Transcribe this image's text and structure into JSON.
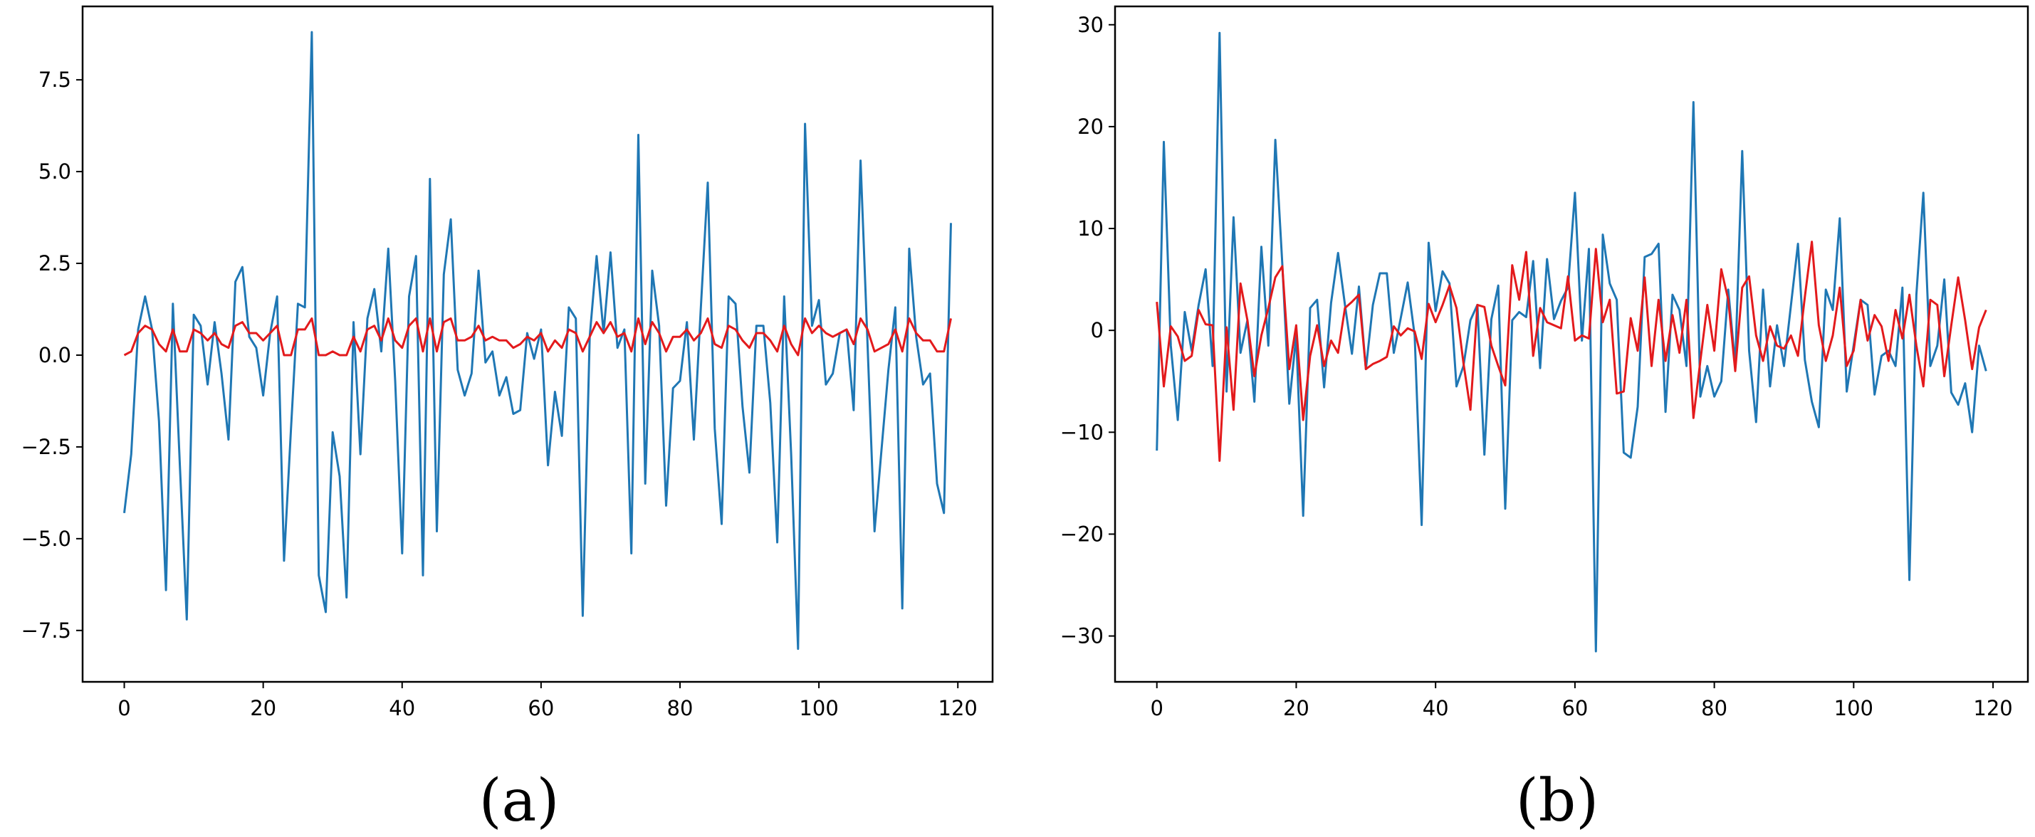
{
  "figure": {
    "captions": [
      "(a)",
      "(b)"
    ]
  },
  "chart_data": [
    {
      "type": "line",
      "caption": "(a)",
      "xlim": [
        -6,
        125
      ],
      "ylim": [
        -8.9,
        9.5
      ],
      "xticks": [
        0,
        20,
        40,
        60,
        80,
        100,
        120
      ],
      "yticks": [
        -7.5,
        -5.0,
        -2.5,
        0.0,
        2.5,
        5.0,
        7.5
      ],
      "ytick_labels": [
        "−7.5",
        "−5.0",
        "−2.5",
        "0.0",
        "2.5",
        "5.0",
        "7.5"
      ],
      "grid": false,
      "series": [
        {
          "color": "#1f77b4",
          "x_start": 0,
          "values": [
            -4.3,
            -2.7,
            0.7,
            1.6,
            0.7,
            -1.8,
            -6.4,
            1.4,
            -3.0,
            -7.2,
            1.1,
            0.8,
            -0.8,
            0.9,
            -0.5,
            -2.3,
            2.0,
            2.4,
            0.5,
            0.2,
            -1.1,
            0.6,
            1.6,
            -5.6,
            -2.0,
            1.4,
            1.3,
            8.8,
            -6.0,
            -7.0,
            -2.1,
            -3.3,
            -6.6,
            0.9,
            -2.7,
            1.0,
            1.8,
            0.1,
            2.9,
            -0.7,
            -5.4,
            1.6,
            2.7,
            -6.0,
            4.8,
            -4.8,
            2.2,
            3.7,
            -0.4,
            -1.1,
            -0.5,
            2.3,
            -0.2,
            0.1,
            -1.1,
            -0.6,
            -1.6,
            -1.5,
            0.6,
            -0.1,
            0.7,
            -3.0,
            -1.0,
            -2.2,
            1.3,
            1.0,
            -7.1,
            0.5,
            2.7,
            0.6,
            2.8,
            0.2,
            0.7,
            -5.4,
            6.0,
            -3.5,
            2.3,
            0.8,
            -4.1,
            -0.9,
            -0.7,
            0.9,
            -2.3,
            1.3,
            4.7,
            -2.0,
            -4.6,
            1.6,
            1.4,
            -1.4,
            -3.2,
            0.8,
            0.8,
            -1.3,
            -5.1,
            1.6,
            -2.7,
            -8.0,
            6.3,
            0.8,
            1.5,
            -0.8,
            -0.5,
            0.6,
            0.7,
            -1.5,
            5.3,
            0.3,
            -4.8,
            -2.6,
            -0.4,
            1.3,
            -6.9,
            2.9,
            0.5,
            -0.8,
            -0.5,
            -3.5,
            -4.3,
            3.6
          ]
        },
        {
          "color": "#e31a1c",
          "x_start": 0,
          "values": [
            0.0,
            0.1,
            0.6,
            0.8,
            0.7,
            0.3,
            0.1,
            0.7,
            0.1,
            0.1,
            0.7,
            0.6,
            0.4,
            0.6,
            0.3,
            0.2,
            0.8,
            0.9,
            0.6,
            0.6,
            0.4,
            0.6,
            0.8,
            0.0,
            0.0,
            0.7,
            0.7,
            1.0,
            0.0,
            0.0,
            0.1,
            0.0,
            0.0,
            0.5,
            0.1,
            0.7,
            0.8,
            0.4,
            1.0,
            0.4,
            0.2,
            0.8,
            1.0,
            0.1,
            1.0,
            0.1,
            0.9,
            1.0,
            0.4,
            0.4,
            0.5,
            0.8,
            0.4,
            0.5,
            0.4,
            0.4,
            0.2,
            0.3,
            0.5,
            0.4,
            0.6,
            0.1,
            0.4,
            0.2,
            0.7,
            0.6,
            0.1,
            0.5,
            0.9,
            0.6,
            0.9,
            0.5,
            0.6,
            0.1,
            1.0,
            0.3,
            0.9,
            0.6,
            0.1,
            0.5,
            0.5,
            0.7,
            0.4,
            0.6,
            1.0,
            0.3,
            0.2,
            0.8,
            0.7,
            0.4,
            0.2,
            0.6,
            0.6,
            0.4,
            0.1,
            0.8,
            0.3,
            0.0,
            1.0,
            0.6,
            0.8,
            0.6,
            0.5,
            0.6,
            0.7,
            0.3,
            1.0,
            0.7,
            0.1,
            0.2,
            0.3,
            0.7,
            0.1,
            1.0,
            0.6,
            0.4,
            0.4,
            0.1,
            0.1,
            1.0
          ]
        }
      ]
    },
    {
      "type": "line",
      "caption": "(b)",
      "xlim": [
        -6,
        125
      ],
      "ylim": [
        -34.5,
        31.8
      ],
      "xticks": [
        0,
        20,
        40,
        60,
        80,
        100,
        120
      ],
      "yticks": [
        -30,
        -20,
        -10,
        0,
        10,
        20,
        30
      ],
      "ytick_labels": [
        "−30",
        "−20",
        "−10",
        "0",
        "10",
        "20",
        "30"
      ],
      "grid": false,
      "series": [
        {
          "color": "#1f77b4",
          "x_start": 0,
          "values": [
            -11.8,
            18.5,
            -1.5,
            -8.8,
            1.8,
            -2.0,
            2.5,
            6.0,
            -3.5,
            29.2,
            -6.0,
            11.1,
            -2.2,
            1.0,
            -7.0,
            8.2,
            -1.5,
            18.7,
            6.5,
            -7.2,
            -0.5,
            -18.2,
            2.2,
            3.0,
            -5.6,
            2.7,
            7.6,
            2.5,
            -2.3,
            4.3,
            -3.8,
            2.5,
            5.6,
            5.6,
            -2.2,
            1.2,
            4.7,
            -0.5,
            -19.1,
            8.6,
            1.9,
            5.8,
            4.6,
            -5.5,
            -3.5,
            1.0,
            2.5,
            -12.2,
            1.1,
            4.4,
            -17.5,
            1.0,
            1.8,
            1.3,
            6.8,
            -3.7,
            7.0,
            1.1,
            2.9,
            4.2,
            13.5,
            -1.0,
            8.0,
            -31.5,
            9.4,
            4.6,
            3.0,
            -12.0,
            -12.5,
            -7.5,
            7.2,
            7.5,
            8.5,
            -8.0,
            3.5,
            2.0,
            -3.5,
            22.4,
            -6.5,
            -3.5,
            -6.5,
            -5.0,
            4.0,
            -3.4,
            17.6,
            -2.0,
            -9.0,
            4.0,
            -5.5,
            0.5,
            -3.5,
            2.5,
            8.5,
            -2.9,
            -7.0,
            -9.5,
            4.0,
            2.0,
            11.0,
            -6.0,
            -1.5,
            3.0,
            2.5,
            -6.3,
            -2.5,
            -2.0,
            -3.5,
            4.2,
            -24.5,
            3.5,
            13.5,
            -3.5,
            -1.5,
            5.0,
            -6.1,
            -7.3,
            -5.2,
            -10.0,
            -1.5,
            -4.0
          ]
        },
        {
          "color": "#e31a1c",
          "x_start": 0,
          "values": [
            2.8,
            -5.5,
            0.4,
            -0.6,
            -3.0,
            -2.5,
            2.0,
            0.6,
            0.5,
            -12.8,
            0.3,
            -7.8,
            4.6,
            1.0,
            -4.5,
            -0.5,
            2.2,
            5.2,
            6.3,
            -3.8,
            0.5,
            -8.8,
            -2.5,
            0.5,
            -3.5,
            -1.0,
            -2.2,
            2.2,
            2.8,
            3.5,
            -3.8,
            -3.3,
            -3.0,
            -2.6,
            0.4,
            -0.5,
            0.2,
            -0.1,
            -2.8,
            2.6,
            0.8,
            2.5,
            4.4,
            2.2,
            -3.2,
            -7.8,
            2.5,
            2.3,
            -1.5,
            -3.5,
            -5.4,
            6.4,
            3.0,
            7.7,
            -2.5,
            2.2,
            0.8,
            0.5,
            0.2,
            5.3,
            -1.0,
            -0.5,
            -0.8,
            8.0,
            0.8,
            3.0,
            -6.2,
            -6.0,
            1.2,
            -2.0,
            5.2,
            -3.5,
            3.0,
            -3.0,
            1.5,
            -2.2,
            3.0,
            -8.6,
            -3.0,
            2.5,
            -2.0,
            6.0,
            3.0,
            -4.0,
            4.2,
            5.3,
            -0.5,
            -3.0,
            0.4,
            -1.5,
            -1.8,
            -0.5,
            -2.5,
            3.3,
            8.7,
            0.5,
            -3.0,
            -0.5,
            4.2,
            -3.5,
            -2.0,
            3.0,
            -1.0,
            1.5,
            0.4,
            -3.0,
            2.0,
            -0.8,
            3.5,
            -1.5,
            -5.5,
            3.0,
            2.5,
            -4.5,
            0.5,
            5.2,
            1.0,
            -3.8,
            0.3,
            2.0
          ]
        }
      ]
    }
  ]
}
